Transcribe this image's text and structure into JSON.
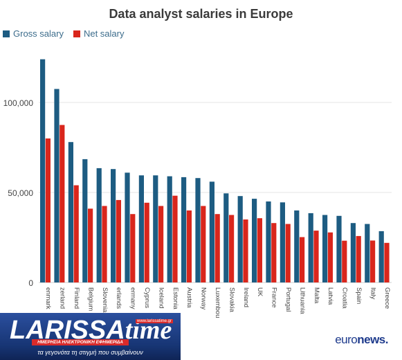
{
  "chart_data": {
    "type": "bar",
    "title": "Data analyst salaries in Europe",
    "categories": [
      "Denmark",
      "Switzerland",
      "Finland",
      "Belgium",
      "Slovenia",
      "Netherlands",
      "Germany",
      "Cyprus",
      "Iceland",
      "Estonia",
      "Austria",
      "Norway",
      "Luxembourg",
      "Slovakia",
      "Ireland",
      "UK",
      "France",
      "Portugal",
      "Lithuania",
      "Malta",
      "Latvia",
      "Croatia",
      "Spain",
      "Italy",
      "Greece"
    ],
    "tick_labels": [
      "enmark",
      "zerland",
      "Finland",
      "Belgium",
      "Slovenia",
      "erlands",
      "ermany",
      "Cyprus",
      "Iceland",
      "Estonia",
      "Austria",
      "Norway",
      "Luxembourg",
      "Slovakia",
      "Ireland",
      "UK",
      "France",
      "Portugal",
      "Lithuania",
      "Malta",
      "Latvia",
      "Croatia",
      "Spain",
      "Italy",
      "Greece"
    ],
    "series": [
      {
        "name": "Gross salary",
        "color": "#1d5c82",
        "values": [
          124000,
          107500,
          78000,
          68500,
          63500,
          63000,
          61000,
          59500,
          59500,
          59000,
          58500,
          58000,
          56000,
          49500,
          48000,
          46500,
          45000,
          44500,
          40000,
          38500,
          37500,
          37000,
          33000,
          32500,
          28500
        ]
      },
      {
        "name": "Net salary",
        "color": "#d9261c",
        "values": [
          80000,
          87500,
          54000,
          41000,
          42500,
          45800,
          38000,
          44300,
          42500,
          48200,
          40000,
          42500,
          38000,
          37500,
          35000,
          35700,
          33000,
          32500,
          25200,
          28800,
          27800,
          23200,
          25800,
          23300,
          22000
        ]
      }
    ],
    "y_ticks": [
      {
        "value": 0,
        "label": "0"
      },
      {
        "value": 50000,
        "label": "50,000"
      },
      {
        "value": 100000,
        "label": "100,000"
      }
    ],
    "ylim": [
      0,
      130000
    ],
    "xlabel": "",
    "ylabel": "",
    "grid": true,
    "legend_position": "top-left"
  },
  "branding": {
    "logo_main": "LARISSA",
    "logo_time": "time",
    "logo_url": "www.larissatime.gr",
    "logo_sub": "ΗΜΕΡΗΣΙΑ ΗΛΕΚΤΡΟΝΙΚΗ ΕΦΗΜΕΡΙΔΑ",
    "logo_tagline": "τα γεγονότα τη στιγμή που συμβαίνουν",
    "euronews_a": "euro",
    "euronews_b": "news."
  }
}
